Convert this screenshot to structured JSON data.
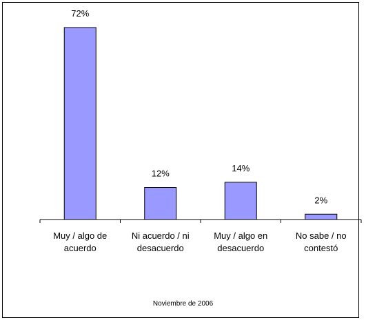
{
  "chart_data": {
    "type": "bar",
    "categories": [
      [
        "Muy / algo de",
        "acuerdo"
      ],
      [
        "Ni acuerdo / ni",
        "desacuerdo"
      ],
      [
        "Muy / algo en",
        "desacuerdo"
      ],
      [
        "No sabe / no",
        "contestó"
      ]
    ],
    "values": [
      72,
      12,
      14,
      2
    ],
    "value_labels": [
      "72%",
      "12%",
      "14%",
      "2%"
    ],
    "ylim": [
      0,
      80
    ],
    "grid": false,
    "legend": "none",
    "colors": {
      "bar_fill": "#9999ff",
      "bar_stroke": "#000000",
      "axis": "#000000"
    }
  },
  "footnote": "Noviembre de 2006"
}
